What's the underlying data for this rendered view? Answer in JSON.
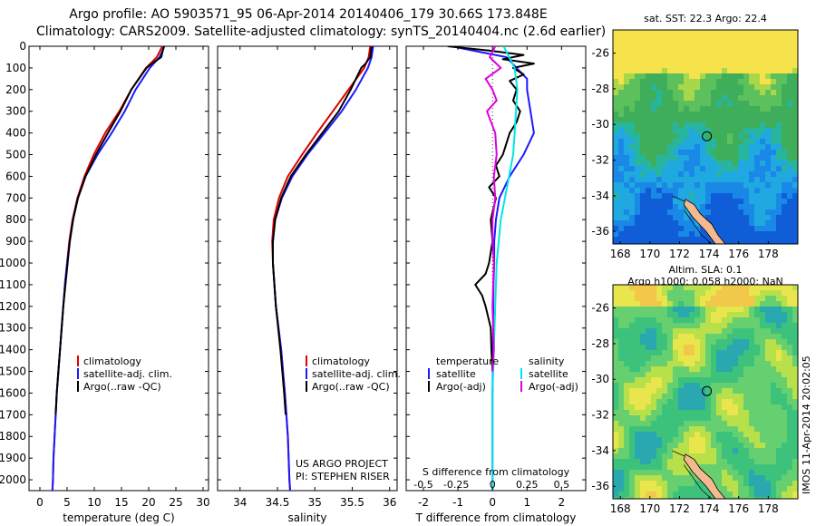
{
  "header": {
    "title_line1": "Argo profile: AO 5903571_95 06-Apr-2014 20140406_179 30.66S 173.848E",
    "title_line2": "Climatology: CARS2009. Satellite-adjusted climatology: synTS_20140404.nc (2.6d earlier)"
  },
  "colors": {
    "climatology": "#e00000",
    "satellite": "#1a1aff",
    "argo": "#000000",
    "sat_salinity": "#00e5e5",
    "argo_salinity": "#e000e0"
  },
  "chart_data": [
    {
      "type": "line",
      "panel": "temperature",
      "xlabel": "temperature (deg C)",
      "ylabel": "",
      "xlim": [
        -2,
        31
      ],
      "ylim": [
        2050,
        0
      ],
      "xticks": [
        0,
        5,
        10,
        15,
        20,
        25,
        30
      ],
      "yticks": [
        0,
        100,
        200,
        300,
        400,
        500,
        600,
        700,
        800,
        900,
        1000,
        1100,
        1200,
        1300,
        1400,
        1500,
        1600,
        1700,
        1800,
        1900,
        2000
      ],
      "legend": [
        "climatology",
        "satellite-adj. clim.",
        "Argo(..raw -QC)"
      ],
      "legend_placement": "lower-right",
      "series": [
        {
          "name": "climatology",
          "depth": [
            0,
            50,
            100,
            200,
            300,
            400,
            500,
            600,
            700,
            800,
            900,
            1000,
            1100,
            1200,
            1300,
            1400,
            1500,
            1600,
            1700,
            1800,
            1900,
            2000,
            2050
          ],
          "values": [
            22.5,
            21.5,
            19.5,
            16.8,
            14.6,
            12.0,
            9.9,
            8.2,
            6.9,
            6.0,
            5.4,
            5.0,
            4.6,
            4.3,
            4.0,
            3.7,
            3.4,
            3.1,
            2.9,
            2.7,
            2.5,
            2.4,
            2.3
          ]
        },
        {
          "name": "satellite-adj. clim.",
          "depth": [
            0,
            50,
            100,
            200,
            300,
            400,
            500,
            600,
            700,
            800,
            900,
            1000,
            1100,
            1200,
            1300,
            1400,
            1500,
            1600,
            1700,
            1800,
            1900,
            2000,
            2050
          ],
          "values": [
            22.9,
            22.0,
            20.2,
            17.6,
            15.6,
            13.2,
            10.6,
            8.4,
            7.0,
            6.1,
            5.5,
            5.0,
            4.6,
            4.3,
            4.0,
            3.7,
            3.4,
            3.1,
            2.9,
            2.7,
            2.5,
            2.4,
            2.3
          ]
        },
        {
          "name": "Argo(..raw -QC)",
          "depth": [
            0,
            50,
            80,
            100,
            200,
            300,
            400,
            500,
            600,
            700,
            800,
            900,
            1000,
            1100,
            1200,
            1300,
            1400,
            1500,
            1600,
            1700
          ],
          "values": [
            22.8,
            22.3,
            20.6,
            19.6,
            16.8,
            14.8,
            12.5,
            10.3,
            8.4,
            7.0,
            6.1,
            5.5,
            5.1,
            4.7,
            4.3,
            4.0,
            3.7,
            3.4,
            3.1,
            2.9
          ]
        }
      ]
    },
    {
      "type": "line",
      "panel": "salinity",
      "xlabel": "salinity",
      "ylabel": "",
      "xlim": [
        33.7,
        36.1
      ],
      "ylim": [
        2050,
        0
      ],
      "xticks": [
        34,
        34.5,
        35,
        35.5,
        36
      ],
      "legend": [
        "climatology",
        "satellite-adj. clim.",
        "Argo(..raw -QC)"
      ],
      "legend_placement": "lower-right",
      "annotations": [
        "US ARGO PROJECT",
        "PI: STEPHEN RISER"
      ],
      "series": [
        {
          "name": "climatology",
          "depth": [
            0,
            50,
            100,
            200,
            300,
            400,
            500,
            600,
            700,
            800,
            900,
            1000,
            1200,
            1400,
            1600,
            1800,
            2000,
            2050
          ],
          "values": [
            35.74,
            35.72,
            35.66,
            35.45,
            35.24,
            35.03,
            34.83,
            34.64,
            34.52,
            34.45,
            34.43,
            34.44,
            34.48,
            34.55,
            34.6,
            34.64,
            34.66,
            34.67
          ]
        },
        {
          "name": "satellite-adj. clim.",
          "depth": [
            0,
            50,
            100,
            200,
            300,
            400,
            500,
            600,
            700,
            800,
            900,
            1000,
            1200,
            1400,
            1600,
            1800,
            2000,
            2050
          ],
          "values": [
            35.78,
            35.76,
            35.71,
            35.55,
            35.36,
            35.13,
            34.9,
            34.7,
            34.56,
            34.47,
            34.44,
            34.44,
            34.48,
            34.55,
            34.6,
            34.64,
            34.66,
            34.67
          ]
        },
        {
          "name": "Argo(..raw -QC)",
          "depth": [
            0,
            50,
            80,
            100,
            200,
            300,
            400,
            500,
            600,
            700,
            800,
            900,
            1000,
            1200,
            1400,
            1600,
            1700
          ],
          "values": [
            35.76,
            35.74,
            35.68,
            35.62,
            35.48,
            35.32,
            35.1,
            34.88,
            34.68,
            34.55,
            34.47,
            34.44,
            34.44,
            34.48,
            34.54,
            34.59,
            34.61
          ]
        }
      ]
    },
    {
      "type": "line",
      "panel": "difference",
      "xlabel": "T difference from climatology",
      "xlabel_top": "S difference from climatology",
      "xlim": [
        -2.5,
        2.7
      ],
      "ylim": [
        2050,
        0
      ],
      "xticks": [
        -2,
        -1,
        0,
        1,
        2
      ],
      "xtick_labels_T": [
        "-2",
        "-1",
        "0",
        "1",
        "2"
      ],
      "xtick_labels_S": [
        "-0.5",
        "-0.25",
        "0",
        "0.25",
        "0.5"
      ],
      "legend_groups": [
        {
          "title": "temperature",
          "entries": [
            "satellite",
            "Argo(-adj)"
          ]
        },
        {
          "title": "salinity",
          "entries": [
            "satellite",
            "Argo(-adj)"
          ]
        }
      ],
      "series": [
        {
          "name": "temperature satellite",
          "depth": [
            0,
            50,
            100,
            150,
            200,
            300,
            400,
            500,
            600,
            700,
            800,
            900,
            1000,
            1100,
            1200,
            1300,
            1400,
            1500,
            1600,
            1700,
            1800,
            1900,
            2000,
            2050
          ],
          "values": [
            -1.2,
            0.4,
            0.7,
            1.0,
            1.0,
            1.1,
            1.2,
            0.9,
            0.5,
            0.2,
            0.1,
            0.05,
            0.05,
            0.03,
            0.02,
            0.02,
            0.01,
            0.01,
            0.0,
            0.0,
            0.0,
            0.0,
            0.0,
            0.0
          ]
        },
        {
          "name": "temperature Argo(-adj)",
          "depth": [
            0,
            20,
            40,
            60,
            80,
            100,
            130,
            160,
            200,
            250,
            300,
            350,
            400,
            450,
            500,
            550,
            600,
            650,
            700,
            800,
            900,
            1000,
            1050,
            1100,
            1150,
            1200,
            1300,
            1400,
            1500
          ],
          "values": [
            -1.3,
            -0.1,
            0.9,
            0.3,
            1.2,
            0.6,
            0.9,
            0.5,
            0.7,
            0.6,
            0.8,
            0.7,
            0.5,
            0.4,
            0.3,
            0.1,
            0.2,
            -0.1,
            0.1,
            -0.05,
            0.0,
            -0.1,
            -0.2,
            -0.5,
            -0.3,
            -0.2,
            -0.05,
            -0.03,
            0.0
          ]
        },
        {
          "name": "salinity satellite",
          "depth": [
            0,
            100,
            200,
            300,
            400,
            500,
            600,
            700,
            800,
            1000,
            1200,
            1400,
            1600,
            1800,
            2000,
            2050
          ],
          "values": [
            0.08,
            0.16,
            0.18,
            0.17,
            0.16,
            0.15,
            0.12,
            0.09,
            0.06,
            0.03,
            0.02,
            0.01,
            0.0,
            0.0,
            0.0,
            0.0
          ]
        },
        {
          "name": "salinity Argo(-adj)",
          "depth": [
            0,
            50,
            100,
            150,
            200,
            250,
            300,
            400,
            500,
            600,
            700,
            800,
            900,
            1000,
            1200,
            1400,
            1500
          ],
          "values": [
            0.02,
            -0.02,
            0.06,
            -0.05,
            0.0,
            0.03,
            -0.04,
            0.02,
            0.03,
            0.01,
            0.02,
            0.0,
            0.0,
            0.01,
            0.0,
            0.01,
            0.0
          ]
        }
      ]
    },
    {
      "type": "heatmap",
      "panel": "sst_map",
      "title": "sat. SST: 22.3 Argo: 22.4",
      "xlim": [
        167.5,
        180
      ],
      "ylim": [
        -36.7,
        -24.7
      ],
      "xticks": [
        168,
        170,
        172,
        174,
        176,
        178
      ],
      "yticks": [
        -26,
        -28,
        -30,
        -32,
        -34,
        -36
      ],
      "argo_position": {
        "lon": 173.848,
        "lat": -30.66
      }
    },
    {
      "type": "heatmap",
      "panel": "sla_map",
      "title_line1": "Altim. SLA: 0.1",
      "title_line2": "Argo h1000: 0.058 h2000: NaN",
      "xlim": [
        167.5,
        180
      ],
      "ylim": [
        -36.7,
        -24.7
      ],
      "xticks": [
        168,
        170,
        172,
        174,
        176,
        178
      ],
      "yticks": [
        -26,
        -28,
        -30,
        -32,
        -34,
        -36
      ],
      "argo_position": {
        "lon": 173.848,
        "lat": -30.66
      }
    }
  ],
  "side_label": "IMOS 11-Apr-2014 20:02:05"
}
